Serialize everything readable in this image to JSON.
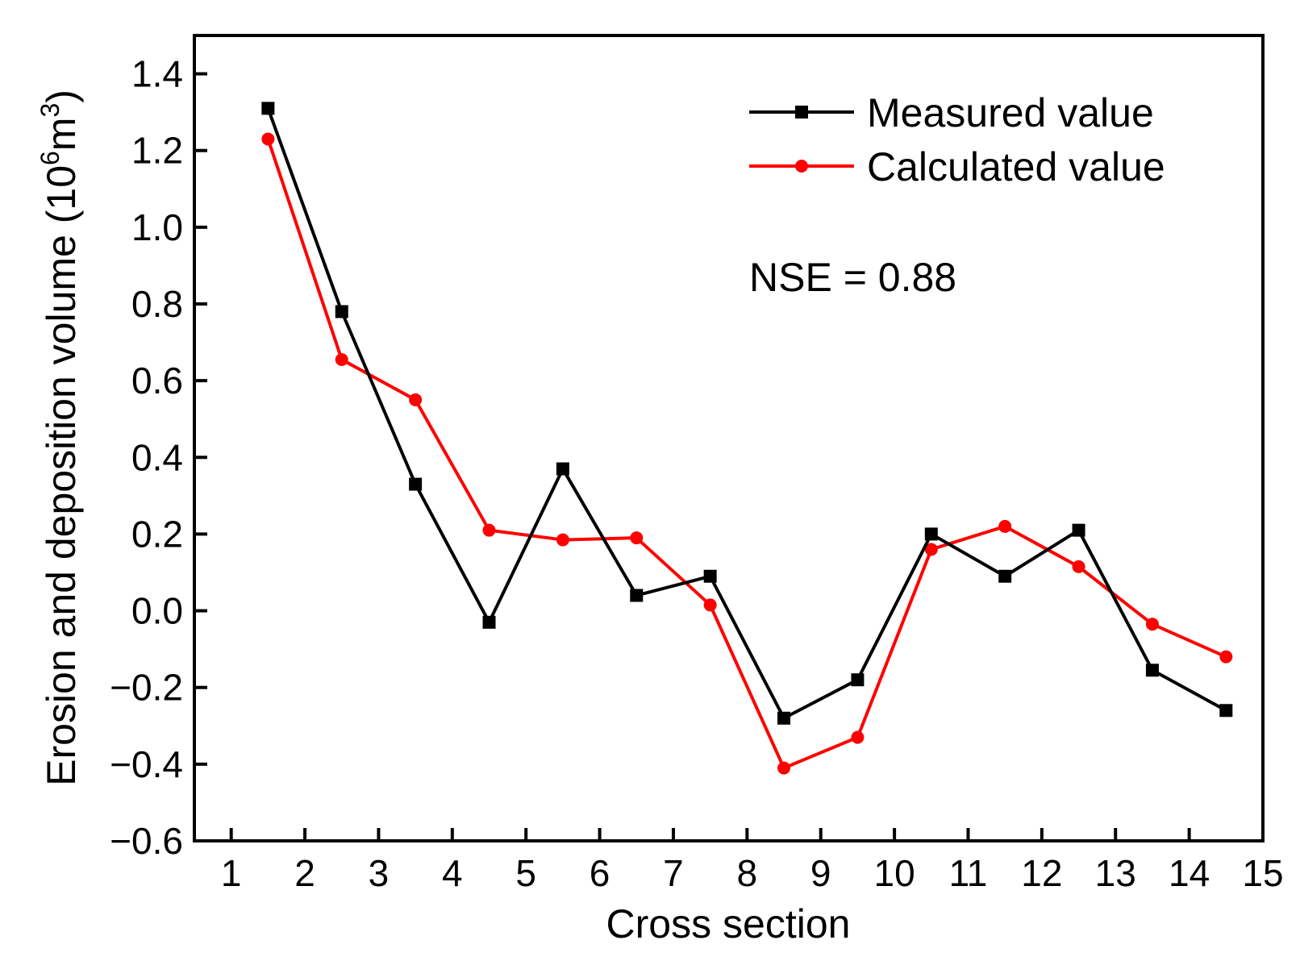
{
  "chart_data": {
    "type": "line",
    "xlabel": "Cross section",
    "ylabel": {
      "main": "Erosion and deposition volume (10",
      "sup1": "6",
      "mid": "m",
      "sup2": "3",
      "end": ")"
    },
    "xlim": [
      0.5,
      15
    ],
    "ylim": [
      -0.6,
      1.5
    ],
    "xticks": [
      1,
      2,
      3,
      4,
      5,
      6,
      7,
      8,
      9,
      10,
      11,
      12,
      13,
      14,
      15
    ],
    "xtick_labels": [
      "1",
      "2",
      "3",
      "4",
      "5",
      "6",
      "7",
      "8",
      "9",
      "10",
      "11",
      "12",
      "13",
      "14",
      "15"
    ],
    "yticks": [
      -0.6,
      -0.4,
      -0.2,
      0.0,
      0.2,
      0.4,
      0.6,
      0.8,
      1.0,
      1.2,
      1.4
    ],
    "ytick_labels": [
      "−0.6",
      "−0.4",
      "−0.2",
      "0.0",
      "0.2",
      "0.4",
      "0.6",
      "0.8",
      "1.0",
      "1.2",
      "1.4"
    ],
    "x": [
      1.5,
      2.5,
      3.5,
      4.5,
      5.5,
      6.5,
      7.5,
      8.5,
      9.5,
      10.5,
      11.5,
      12.5,
      13.5,
      14.5
    ],
    "series": [
      {
        "name": "Measured value",
        "color": "#000000",
        "marker": "square",
        "values": [
          1.31,
          0.78,
          0.33,
          -0.03,
          0.37,
          0.04,
          0.09,
          -0.28,
          -0.18,
          0.2,
          0.09,
          0.21,
          -0.155,
          -0.26
        ]
      },
      {
        "name": "Calculated value",
        "color": "#ff0000",
        "marker": "circle",
        "values": [
          1.23,
          0.655,
          0.55,
          0.21,
          0.185,
          0.19,
          0.015,
          -0.41,
          -0.33,
          0.16,
          0.22,
          0.115,
          -0.035,
          -0.12
        ]
      }
    ],
    "legend_position": "top-right",
    "annotation": "NSE = 0.88"
  }
}
